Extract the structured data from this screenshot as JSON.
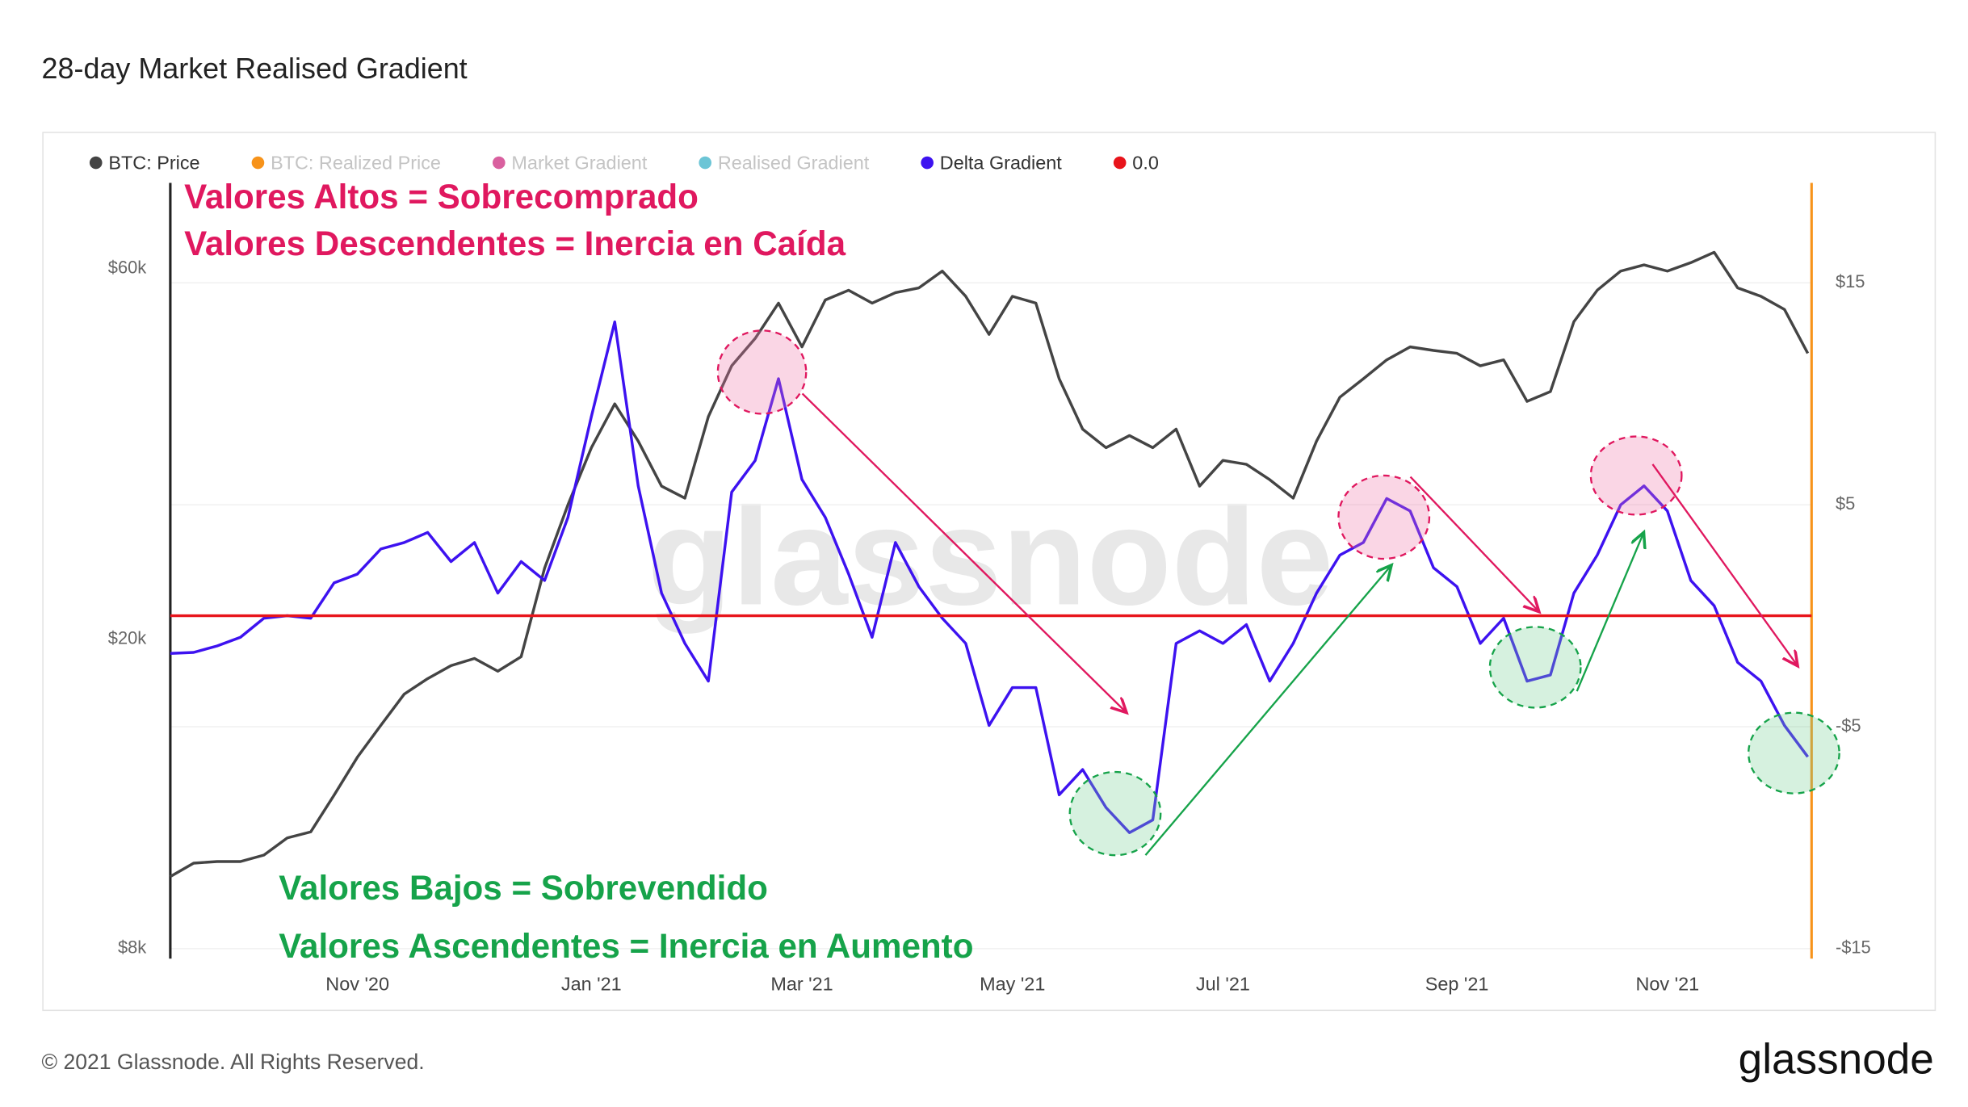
{
  "chart_data": {
    "type": "line",
    "title": "28-day Market Realised Gradient",
    "footer": "© 2021 Glassnode. All Rights Reserved.",
    "brand": "glassnode",
    "watermark": "glassnode",
    "annotations": {
      "high": [
        "Valores Altos = Sobrecomprado",
        "Valores Descendentes = Inercia en Caída"
      ],
      "low": [
        "Valores Bajos = Sobrevendido",
        "Valores Ascendentes = Inercia en Aumento"
      ]
    },
    "legend": [
      {
        "name": "BTC: Price",
        "color": "#444444",
        "visible": true
      },
      {
        "name": "BTC: Realized Price",
        "color": "#f7931a",
        "visible": false
      },
      {
        "name": "Market Gradient",
        "color": "#d9609f",
        "visible": false
      },
      {
        "name": "Realised Gradient",
        "color": "#6cc5d6",
        "visible": false
      },
      {
        "name": "Delta Gradient",
        "color": "#3d12f0",
        "visible": true
      },
      {
        "name": "0.0",
        "color": "#e8141b",
        "visible": true
      }
    ],
    "categories": [
      null,
      null,
      null,
      null,
      null,
      null,
      null,
      null,
      "Nov '20",
      null,
      null,
      null,
      null,
      null,
      null,
      null,
      null,
      null,
      "Jan '21",
      null,
      null,
      null,
      null,
      null,
      null,
      null,
      null,
      "Mar '21",
      null,
      null,
      null,
      null,
      null,
      null,
      null,
      null,
      "May '21",
      null,
      null,
      null,
      null,
      null,
      null,
      null,
      null,
      "Jul '21",
      null,
      null,
      null,
      null,
      null,
      null,
      null,
      null,
      null,
      "Sep '21",
      null,
      null,
      null,
      null,
      null,
      null,
      null,
      null,
      "Nov '21",
      null,
      null,
      null,
      null,
      null,
      null
    ],
    "series": [
      {
        "name": "BTC: Price",
        "color": "#444444",
        "axis": "y",
        "values": [
          9900,
          10300,
          10350,
          10350,
          10550,
          11100,
          11300,
          12600,
          14100,
          15500,
          17000,
          17800,
          18500,
          18900,
          18200,
          19000,
          24700,
          29800,
          35300,
          40200,
          36000,
          31500,
          30400,
          38700,
          45000,
          48800,
          54200,
          47600,
          54700,
          56300,
          54200,
          55900,
          56700,
          59600,
          55300,
          49400,
          55300,
          54200,
          43300,
          37300,
          35300,
          36600,
          35300,
          37300,
          31500,
          34000,
          33600,
          32100,
          30400,
          36000,
          41000,
          43300,
          45800,
          47600,
          47100,
          46700,
          45000,
          45800,
          40500,
          41700,
          51300,
          56300,
          59600,
          60700,
          59600,
          61100,
          63000,
          56700,
          55300,
          53200,
          46700
        ]
      },
      {
        "name": "Delta Gradient",
        "color": "#3d12f0",
        "axis": "y2",
        "values": [
          -1.7,
          -1.65,
          -1.36,
          -0.97,
          -0.11,
          0,
          -0.11,
          1.48,
          1.88,
          3.01,
          3.3,
          3.75,
          2.44,
          3.3,
          1.02,
          2.44,
          1.59,
          4.43,
          8.98,
          13.24,
          5.85,
          1.02,
          -1.25,
          -2.95,
          5.57,
          6.99,
          10.68,
          6.14,
          4.43,
          1.88,
          -0.97,
          3.3,
          1.31,
          -0.11,
          -1.25,
          -4.94,
          -3.24,
          -3.24,
          -8.07,
          -6.93,
          -8.64,
          -9.77,
          -9.2,
          -1.25,
          -0.68,
          -1.25,
          -0.4,
          -2.95,
          -1.25,
          1.02,
          2.73,
          3.3,
          5.28,
          4.72,
          2.16,
          1.31,
          -1.25,
          -0.11,
          -2.95,
          -2.67,
          1.02,
          2.73,
          5.0,
          5.85,
          4.72,
          1.59,
          0.45,
          -2.1,
          -2.95,
          -4.94,
          -6.36
        ]
      }
    ],
    "reference_line": {
      "value": 0,
      "color": "#e8141b",
      "axis": "y2"
    },
    "ylog": true,
    "ylim": [
      7760,
      77400
    ],
    "yticks": [
      {
        "value": 8000,
        "label": "$8k"
      },
      {
        "value": 20000,
        "label": "$20k"
      },
      {
        "value": 60000,
        "label": "$60k"
      }
    ],
    "y2lim": [
      -15.45,
      19.5
    ],
    "y2ticks": [
      {
        "value": -15,
        "label": "-$15"
      },
      {
        "value": -5,
        "label": "-$5"
      },
      {
        "value": 5,
        "label": "$5"
      },
      {
        "value": 15,
        "label": "$15"
      }
    ],
    "grid": true
  }
}
